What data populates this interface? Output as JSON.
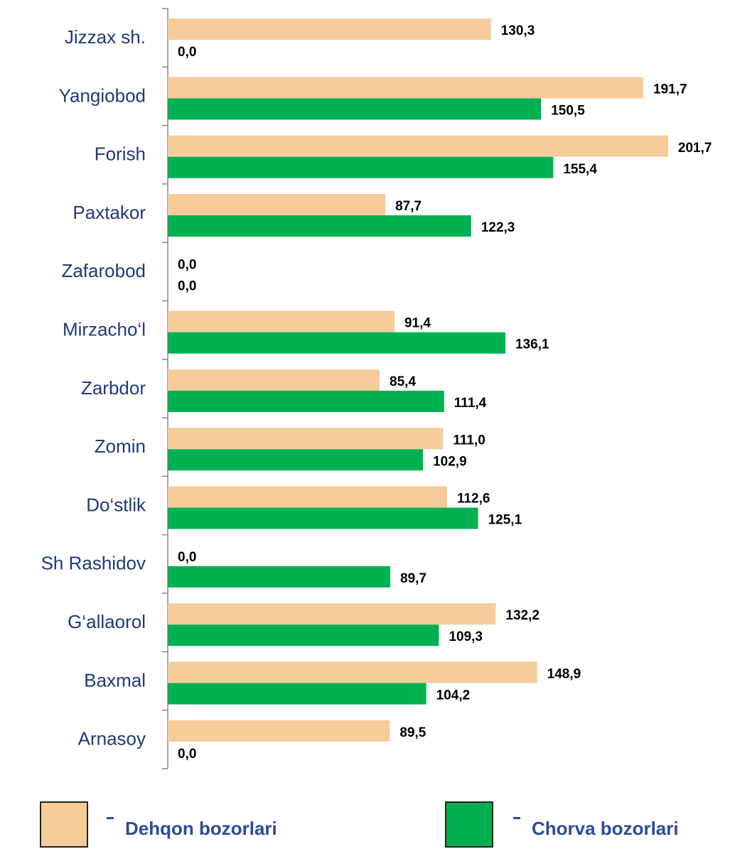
{
  "chart_data": {
    "type": "bar",
    "orientation": "horizontal",
    "categories": [
      "Jizzax sh.",
      "Yangiobod",
      "Forish",
      "Paxtakor",
      "Zafarobod",
      "Mirzacho‘l",
      "Zarbdor",
      "Zomin",
      "Do‘stlik",
      "Sh Rashidov",
      "G‘allaorol",
      "Baxmal",
      "Arnasoy"
    ],
    "series": [
      {
        "name": "Dehqon bozorlari",
        "color": "#f5cc9a",
        "values": [
          130.3,
          191.7,
          201.7,
          87.7,
          0.0,
          91.4,
          85.4,
          111.0,
          112.6,
          0.0,
          132.2,
          148.9,
          89.5
        ],
        "value_labels": [
          "130,3",
          "191,7",
          "201,7",
          "87,7",
          "0,0",
          "91,4",
          "85,4",
          "111,0",
          "112,6",
          "0,0",
          "132,2",
          "148,9",
          "89,5"
        ]
      },
      {
        "name": "Chorva bozorlari",
        "color": "#00b050",
        "values": [
          0.0,
          150.5,
          155.4,
          122.3,
          0.0,
          136.1,
          111.4,
          102.9,
          125.1,
          89.7,
          109.3,
          104.2,
          0.0
        ],
        "value_labels": [
          "0,0",
          "150,5",
          "155,4",
          "122,3",
          "0,0",
          "136,1",
          "111,4",
          "102,9",
          "125,1",
          "89,7",
          "109,3",
          "104,2",
          "0,0"
        ]
      }
    ]
  }
}
